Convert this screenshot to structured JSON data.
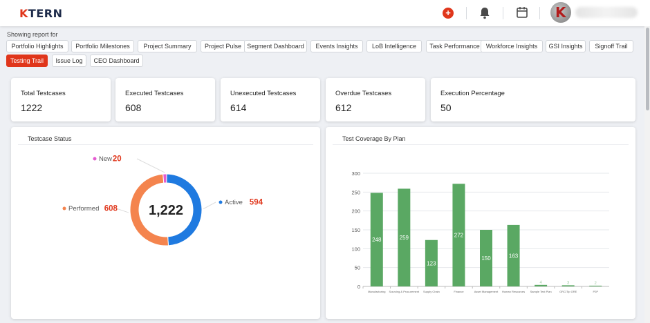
{
  "header": {
    "logo_k": "K",
    "logo_rest": "TERN",
    "add_label": "+"
  },
  "report": {
    "showing_label": "Showing report for",
    "tabs": [
      {
        "label": "Portfolio Highlights",
        "active": false
      },
      {
        "label": "Portfolio Milestones",
        "active": false
      },
      {
        "label": "Project Summary",
        "active": false
      },
      {
        "label": "Project Pulse",
        "active": false
      },
      {
        "label": "Segment Dashboard",
        "active": false
      },
      {
        "label": "Events Insights",
        "active": false
      },
      {
        "label": "LoB Intelligence",
        "active": false
      },
      {
        "label": "Task Performance",
        "active": false
      },
      {
        "label": "Workforce Insights",
        "active": false
      },
      {
        "label": "GSI Insights",
        "active": false
      },
      {
        "label": "Signoff Trail",
        "active": false
      },
      {
        "label": "Testing Trail",
        "active": true
      },
      {
        "label": "Issue Log",
        "active": false
      },
      {
        "label": "CEO Dashboard",
        "active": false
      }
    ]
  },
  "kpis": [
    {
      "label": "Total Testcases",
      "value": "1222"
    },
    {
      "label": "Executed Testcases",
      "value": "608"
    },
    {
      "label": "Unexecuted Testcases",
      "value": "614"
    },
    {
      "label": "Overdue Testcases",
      "value": "612"
    },
    {
      "label": "Execution Percentage",
      "value": "50"
    }
  ],
  "status_panel": {
    "title": "Testcase Status"
  },
  "coverage_panel": {
    "title": "Test Coverage By Plan"
  },
  "colors": {
    "accent": "#e0361b",
    "active": "#1f7ae0",
    "performed": "#f4844e",
    "new": "#e45bd0",
    "bar": "#5aa863"
  },
  "chart_data": [
    {
      "type": "pie",
      "title": "Testcase Status",
      "center_label": "1,222",
      "slices": [
        {
          "label": "Active",
          "value": 594,
          "color": "#1f7ae0"
        },
        {
          "label": "Performed",
          "value": 608,
          "color": "#f4844e"
        },
        {
          "label": "New",
          "value": 20,
          "color": "#e45bd0"
        }
      ]
    },
    {
      "type": "bar",
      "title": "Test Coverage By Plan",
      "categories": [
        "Manufacturing",
        "Sourcing & Procurement",
        "Supply Chain",
        "Finance",
        "Asset Management",
        "Human Resources",
        "Sample Test Plan",
        "GRC/Tip GRE",
        "P2P"
      ],
      "values": [
        248,
        259,
        123,
        272,
        150,
        163,
        4,
        3,
        2
      ],
      "value_labels": [
        "248",
        "259",
        "123",
        "272",
        "150",
        "163",
        "4",
        "3",
        "2"
      ],
      "ylim": [
        0,
        300
      ],
      "yticks": [
        0,
        50,
        100,
        150,
        200,
        250,
        300
      ],
      "grid": true,
      "color": "#5aa863"
    }
  ]
}
